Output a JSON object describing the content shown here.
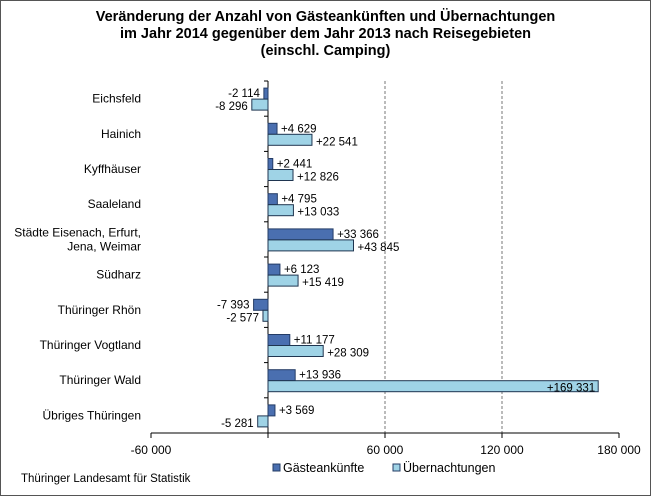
{
  "chart_data": {
    "type": "bar",
    "orientation": "horizontal",
    "title_lines": [
      "Veränderung der Anzahl von Gästeankünften und Übernachtungen",
      "im Jahr 2014 gegenüber dem Jahr 2013 nach Reisegebieten",
      "(einschl. Camping)"
    ],
    "categories": [
      [
        "Eichsfeld"
      ],
      [
        "Hainich"
      ],
      [
        "Kyffhäuser"
      ],
      [
        "Saaleland"
      ],
      [
        "Städte Eisenach, Erfurt,",
        "Jena, Weimar"
      ],
      [
        "Südharz"
      ],
      [
        "Thüringer Rhön"
      ],
      [
        "Thüringer Vogtland"
      ],
      [
        "Thüringer Wald"
      ],
      [
        "Übriges Thüringen"
      ]
    ],
    "series": [
      {
        "name": "Gästeankünfte",
        "color": "#4a6fb0",
        "values": [
          -2114,
          4629,
          2441,
          4795,
          33366,
          6123,
          -7393,
          11177,
          13936,
          3569
        ],
        "labels": [
          "-2 114",
          "+4 629",
          "+2 441",
          "+4 795",
          "+33 366",
          "+6 123",
          "-7 393",
          "+11 177",
          "+13 936",
          "+3 569"
        ]
      },
      {
        "name": "Übernachtungen",
        "color": "#9fd3e6",
        "values": [
          -8296,
          22541,
          12826,
          13033,
          43845,
          15419,
          -2577,
          28309,
          169331,
          -5281
        ],
        "labels": [
          "-8 296",
          "+22 541",
          "+12 826",
          "+13 033",
          "+43 845",
          "+15 419",
          "-2 577",
          "+28 309",
          "+169 331",
          "-5 281"
        ]
      }
    ],
    "xlim": [
      -60000,
      180000
    ],
    "xticks": [
      -60000,
      0,
      60000,
      120000,
      180000
    ],
    "xtick_labels": [
      "-60 000",
      "",
      "60 000",
      "120 000",
      "180 000"
    ],
    "gridlines": "dashed vertical at 60 000 and 120 000",
    "legend_position": "bottom"
  },
  "source": "Thüringer Landesamt für Statistik"
}
